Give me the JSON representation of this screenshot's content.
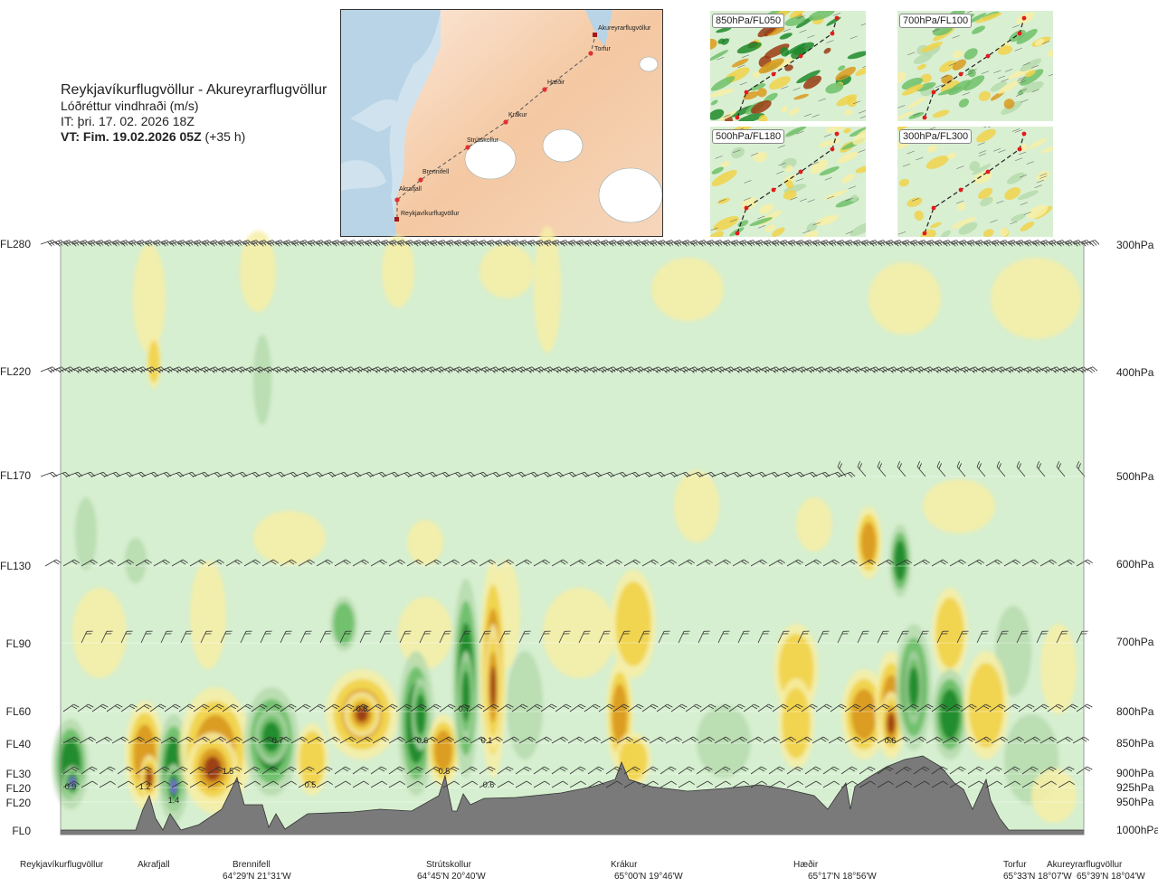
{
  "header": {
    "route": "Reykjavíkurflugvöllur - Akureyrarflugvöllur",
    "variable": "Lóðréttur vindhraði (m/s)",
    "issue_time": "IT: þri. 17. 02. 2026 18Z",
    "valid_lead": "VT:",
    "valid_time": "Fim. 19.02.2026 05Z",
    "valid_offset": "(+35 h)"
  },
  "route_map": {
    "points": [
      {
        "name": "Akureyrarflugvöllur"
      },
      {
        "name": "Torfur"
      },
      {
        "name": "Hæðir"
      },
      {
        "name": "Krákur"
      },
      {
        "name": "Strútskollur"
      },
      {
        "name": "Brennifell"
      },
      {
        "name": "Akrafjall"
      },
      {
        "name": "Reykjavíkurflugvöllur"
      }
    ]
  },
  "level_maps": [
    {
      "label": "850hPa/FL050"
    },
    {
      "label": "700hPa/FL100"
    },
    {
      "label": "500hPa/FL180"
    },
    {
      "label": "300hPa/FL300"
    }
  ],
  "flight_levels": [
    "FL280",
    "FL220",
    "FL170",
    "FL130",
    "FL90",
    "FL60",
    "FL40",
    "FL30",
    "FL20",
    "FL20",
    "FL0"
  ],
  "pressure_levels": [
    "300hPa",
    "400hPa",
    "500hPa",
    "600hPa",
    "700hPa",
    "800hPa",
    "850hPa",
    "900hPa",
    "925hPa",
    "950hPa",
    "1000hPa"
  ],
  "waypoints": [
    {
      "name": "Reykjavíkurflugvöllur",
      "coord": ""
    },
    {
      "name": "Akrafjall",
      "coord": ""
    },
    {
      "name": "Brennifell",
      "coord": "64°29'N 21°31'W"
    },
    {
      "name": "Strútskollur",
      "coord": "64°45'N 20°40'W"
    },
    {
      "name": "Krákur",
      "coord": "65°00'N 19°46'W"
    },
    {
      "name": "Hæðir",
      "coord": "65°17'N 18°56'W"
    },
    {
      "name": "Torfur",
      "coord": "65°33'N 18°07'W"
    },
    {
      "name": "Akureyrarflugvöllur",
      "coord": "65°39'N 18°04'W"
    }
  ],
  "value_labels": [
    "0.9",
    "1.2",
    "1.4",
    "1.5",
    "0.7",
    "0.5",
    "0.8",
    "0.6",
    "0.7",
    "0.5",
    "0.1",
    "0.6",
    "0.6"
  ],
  "colors": {
    "calm": "#d6efd0",
    "weak_up": "#f7eea6",
    "mod_up": "#f0d24a",
    "strong_up": "#d99a1e",
    "vstrong_up": "#9a3b12",
    "weak_down": "#b6dbae",
    "mod_down": "#6fbf6a",
    "strong_down": "#1f8a2a",
    "vstrong_down": "#7a68d8",
    "terrain": "#7a7a7a"
  }
}
